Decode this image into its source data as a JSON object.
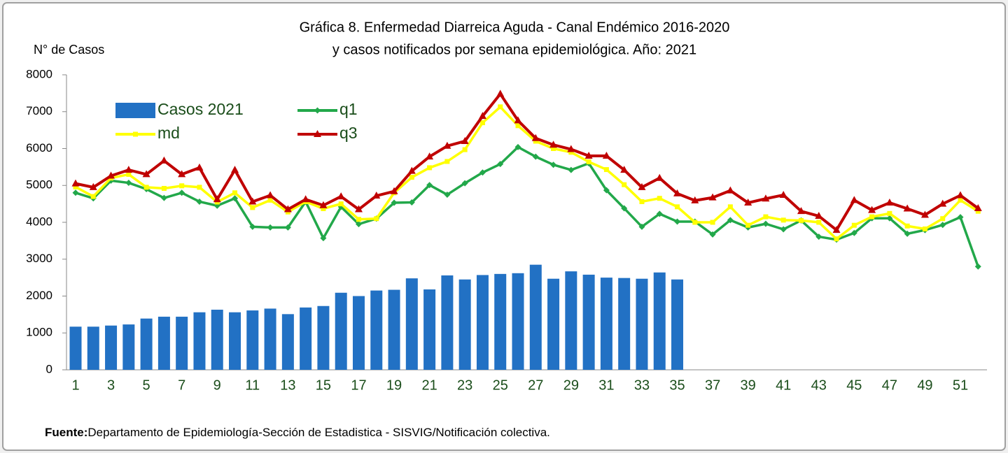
{
  "chart_data": {
    "type": "bar_line",
    "title": "Gráfica 8. Enfermedad Diarreica Aguda - Canal Endémico 2016-2020",
    "subtitle": "y casos notificados por semana epidemiológica.  Año: 2021",
    "y_label": "N° de Casos",
    "source": {
      "label": "Fuente:",
      "text": "Departamento de Epidemiología-Sección de Estadistica - SISVIG/Notificación colectiva."
    },
    "categories": [
      1,
      null,
      3,
      null,
      5,
      null,
      7,
      null,
      9,
      null,
      11,
      null,
      13,
      null,
      15,
      null,
      17,
      null,
      19,
      null,
      21,
      null,
      23,
      null,
      25,
      null,
      27,
      null,
      29,
      null,
      31,
      null,
      33,
      null,
      35,
      null,
      37,
      null,
      39,
      null,
      41,
      null,
      43,
      null,
      45,
      null,
      47,
      null,
      49,
      null,
      51,
      null
    ],
    "ylim": [
      0,
      8000
    ],
    "yticks": [
      0,
      1000,
      2000,
      3000,
      4000,
      5000,
      6000,
      7000,
      8000
    ],
    "grid": false,
    "legend": "upper left",
    "series": [
      {
        "name": "Casos 2021",
        "type": "bar",
        "color": "#2271c4",
        "values": [
          1170,
          1170,
          1200,
          1230,
          1390,
          1440,
          1440,
          1560,
          1630,
          1560,
          1610,
          1660,
          1510,
          1690,
          1730,
          2090,
          2000,
          2150,
          2170,
          2480,
          2180,
          2560,
          2450,
          2570,
          2600,
          2620,
          2850,
          2470,
          2670,
          2580,
          2500,
          2490,
          2470,
          2640,
          2450,
          null,
          null,
          null,
          null,
          null,
          null,
          null,
          null,
          null,
          null,
          null,
          null,
          null,
          null,
          null,
          null,
          null
        ]
      },
      {
        "name": "q1",
        "type": "line",
        "marker": "diamond",
        "color": "#22a84a",
        "values": [
          4800,
          4650,
          5130,
          5070,
          4900,
          4660,
          4800,
          4560,
          4450,
          4650,
          3880,
          3860,
          3860,
          4560,
          3570,
          4420,
          3950,
          4100,
          4530,
          4540,
          5010,
          4750,
          5060,
          5350,
          5580,
          6040,
          5780,
          5560,
          5420,
          5600,
          4870,
          4380,
          3880,
          4230,
          4020,
          4020,
          3670,
          4060,
          3860,
          3960,
          3810,
          4050,
          3610,
          3530,
          3710,
          4110,
          4110,
          3690,
          3790,
          3930,
          4140,
          2800
        ]
      },
      {
        "name": "md",
        "type": "line",
        "marker": "square",
        "color": "#ffff00",
        "values": [
          4960,
          4700,
          5200,
          5300,
          4950,
          4920,
          4990,
          4950,
          4550,
          4800,
          4400,
          4600,
          4280,
          4560,
          4370,
          4500,
          4080,
          4100,
          4800,
          5220,
          5480,
          5650,
          5970,
          6700,
          7130,
          6620,
          6200,
          6000,
          5900,
          5640,
          5430,
          5020,
          4560,
          4650,
          4420,
          4000,
          4000,
          4420,
          3920,
          4150,
          4060,
          4050,
          4000,
          3550,
          3920,
          4150,
          4240,
          3900,
          3820,
          4100,
          4600,
          4300
        ]
      },
      {
        "name": "q3",
        "type": "line",
        "marker": "triangle",
        "color": "#c00000",
        "values": [
          5050,
          4950,
          5260,
          5420,
          5300,
          5670,
          5300,
          5480,
          4620,
          5420,
          4560,
          4730,
          4350,
          4620,
          4460,
          4700,
          4350,
          4720,
          4840,
          5390,
          5780,
          6070,
          6200,
          6880,
          7480,
          6760,
          6280,
          6100,
          5980,
          5800,
          5800,
          5420,
          4950,
          5200,
          4780,
          4590,
          4670,
          4860,
          4530,
          4640,
          4740,
          4300,
          4170,
          3790,
          4600,
          4330,
          4530,
          4370,
          4200,
          4500,
          4730,
          4380
        ]
      }
    ]
  }
}
